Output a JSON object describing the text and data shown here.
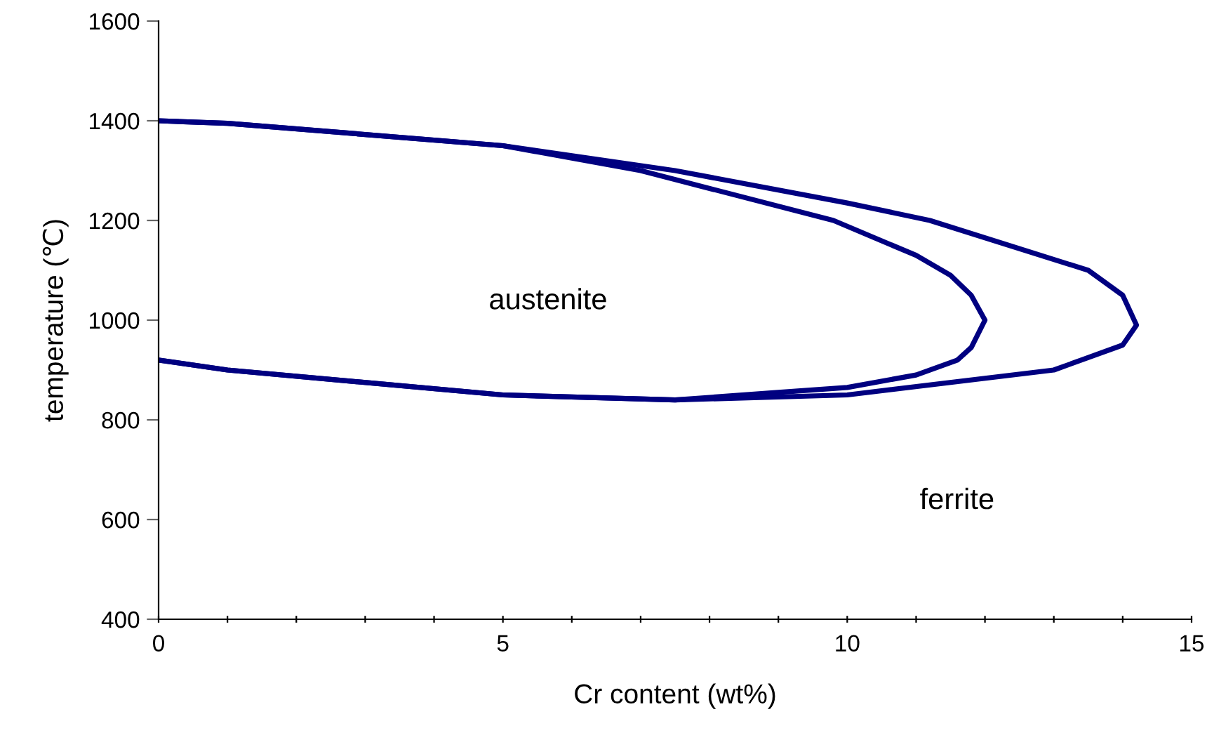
{
  "chart_data": {
    "type": "line",
    "xlabel": "Cr content (wt%)",
    "ylabel": "temperature (℃)",
    "series": [
      {
        "color": "#000080",
        "x": [
          0,
          1,
          5,
          7,
          9.8,
          11,
          11.5,
          11.8,
          12,
          11.8,
          11.6,
          11,
          10,
          9,
          7.5,
          5,
          1,
          0
        ],
        "values": [
          1400,
          1395,
          1350,
          1300,
          1200,
          1130,
          1090,
          1050,
          1000,
          945,
          920,
          890,
          865,
          855,
          840,
          850,
          900,
          920
        ]
      },
      {
        "color": "#000080",
        "x": [
          0,
          1,
          5,
          7.5,
          10,
          11.2,
          13.5,
          14,
          14.2,
          14,
          13,
          10,
          7.5,
          5,
          1,
          0
        ],
        "values": [
          1400,
          1395,
          1350,
          1300,
          1235,
          1200,
          1100,
          1050,
          990,
          950,
          900,
          850,
          840,
          850,
          900,
          920
        ]
      }
    ],
    "annotations": [
      "austenite",
      "ferrite"
    ],
    "xlim": [
      0,
      15
    ],
    "xticks": [
      0,
      {
        "value": 1,
        "label": null
      },
      {
        "value": 2,
        "label": null
      },
      {
        "value": 3,
        "label": null
      },
      {
        "value": 4,
        "label": null
      },
      5,
      {
        "value": 6,
        "label": null
      },
      {
        "value": 7,
        "label": null
      },
      {
        "value": 8,
        "label": null
      },
      {
        "value": 9,
        "label": null
      },
      10,
      {
        "value": 11,
        "label": null
      },
      {
        "value": 12,
        "label": null
      },
      {
        "value": 13,
        "label": null
      },
      {
        "value": 14,
        "label": null
      },
      15
    ],
    "ylim": [
      400,
      1600
    ],
    "yticks": [
      400,
      600,
      800,
      1000,
      1200,
      1400,
      1600
    ],
    "grid": false,
    "legend": false,
    "marker": "none",
    "line_style": "solid"
  }
}
